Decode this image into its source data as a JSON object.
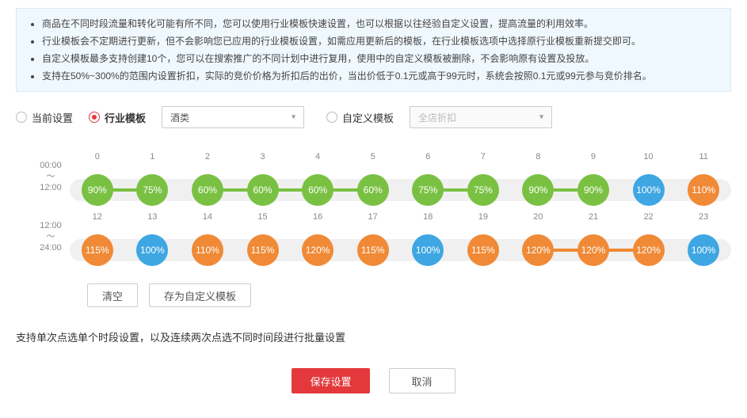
{
  "colors": {
    "green": "#7ac143",
    "blue": "#3ea6e2",
    "orange": "#f08a36",
    "track": "#f0f0f0"
  },
  "info": {
    "items": [
      "商品在不同时段流量和转化可能有所不同，您可以使用行业模板快速设置，也可以根据以往经验自定义设置，提高流量的利用效率。",
      "行业模板会不定期进行更新，但不会影响您已应用的行业模板设置，如需应用更新后的模板，在行业模板选项中选择原行业模板重新提交即可。",
      "自定义模板最多支持创建10个，您可以在搜索推广的不同计划中进行复用，使用中的自定义模板被删除，不会影响原有设置及投放。",
      "支持在50%~300%的范围内设置折扣，实际的竞价价格为折扣后的出价，当出价低于0.1元或高于99元时，系统会按照0.1元或99元参与竞价排名。"
    ]
  },
  "radios": {
    "current_label": "当前设置",
    "industry_label": "行业模板",
    "custom_label": "自定义模板",
    "industry_select": "酒类",
    "custom_select": "全店折扣"
  },
  "rows": [
    {
      "time_from": "00:00",
      "time_sep": "～",
      "time_to": "12:00",
      "hours": [
        "0",
        "1",
        "2",
        "3",
        "4",
        "5",
        "6",
        "7",
        "8",
        "9",
        "10",
        "11"
      ],
      "nodes": [
        {
          "v": "90%",
          "c": "green"
        },
        {
          "v": "75%",
          "c": "green"
        },
        {
          "v": "60%",
          "c": "green"
        },
        {
          "v": "60%",
          "c": "green"
        },
        {
          "v": "60%",
          "c": "green"
        },
        {
          "v": "60%",
          "c": "green"
        },
        {
          "v": "75%",
          "c": "green"
        },
        {
          "v": "75%",
          "c": "green"
        },
        {
          "v": "90%",
          "c": "green"
        },
        {
          "v": "90%",
          "c": "green"
        },
        {
          "v": "100%",
          "c": "blue"
        },
        {
          "v": "110%",
          "c": "orange"
        }
      ],
      "segments": [
        {
          "a": 0,
          "b": 1,
          "c": "green"
        },
        {
          "a": 2,
          "b": 3,
          "c": "green"
        },
        {
          "a": 3,
          "b": 4,
          "c": "green"
        },
        {
          "a": 4,
          "b": 5,
          "c": "green"
        },
        {
          "a": 6,
          "b": 7,
          "c": "green"
        },
        {
          "a": 8,
          "b": 9,
          "c": "green"
        }
      ]
    },
    {
      "time_from": "12:00",
      "time_sep": "～",
      "time_to": "24:00",
      "hours": [
        "12",
        "13",
        "14",
        "15",
        "16",
        "17",
        "18",
        "19",
        "20",
        "21",
        "22",
        "23"
      ],
      "nodes": [
        {
          "v": "115%",
          "c": "orange"
        },
        {
          "v": "100%",
          "c": "blue"
        },
        {
          "v": "110%",
          "c": "orange"
        },
        {
          "v": "115%",
          "c": "orange"
        },
        {
          "v": "120%",
          "c": "orange"
        },
        {
          "v": "115%",
          "c": "orange"
        },
        {
          "v": "100%",
          "c": "blue"
        },
        {
          "v": "115%",
          "c": "orange"
        },
        {
          "v": "120%",
          "c": "orange"
        },
        {
          "v": "120%",
          "c": "orange"
        },
        {
          "v": "120%",
          "c": "orange"
        },
        {
          "v": "100%",
          "c": "blue"
        }
      ],
      "segments": [
        {
          "a": 8,
          "b": 9,
          "c": "orange"
        },
        {
          "a": 9,
          "b": 10,
          "c": "orange"
        }
      ]
    }
  ],
  "buttons": {
    "clear": "清空",
    "save_template": "存为自定义模板",
    "save": "保存设置",
    "cancel": "取消"
  },
  "hint": "支持单次点选单个时段设置，以及连续两次点选不同时间段进行批量设置"
}
